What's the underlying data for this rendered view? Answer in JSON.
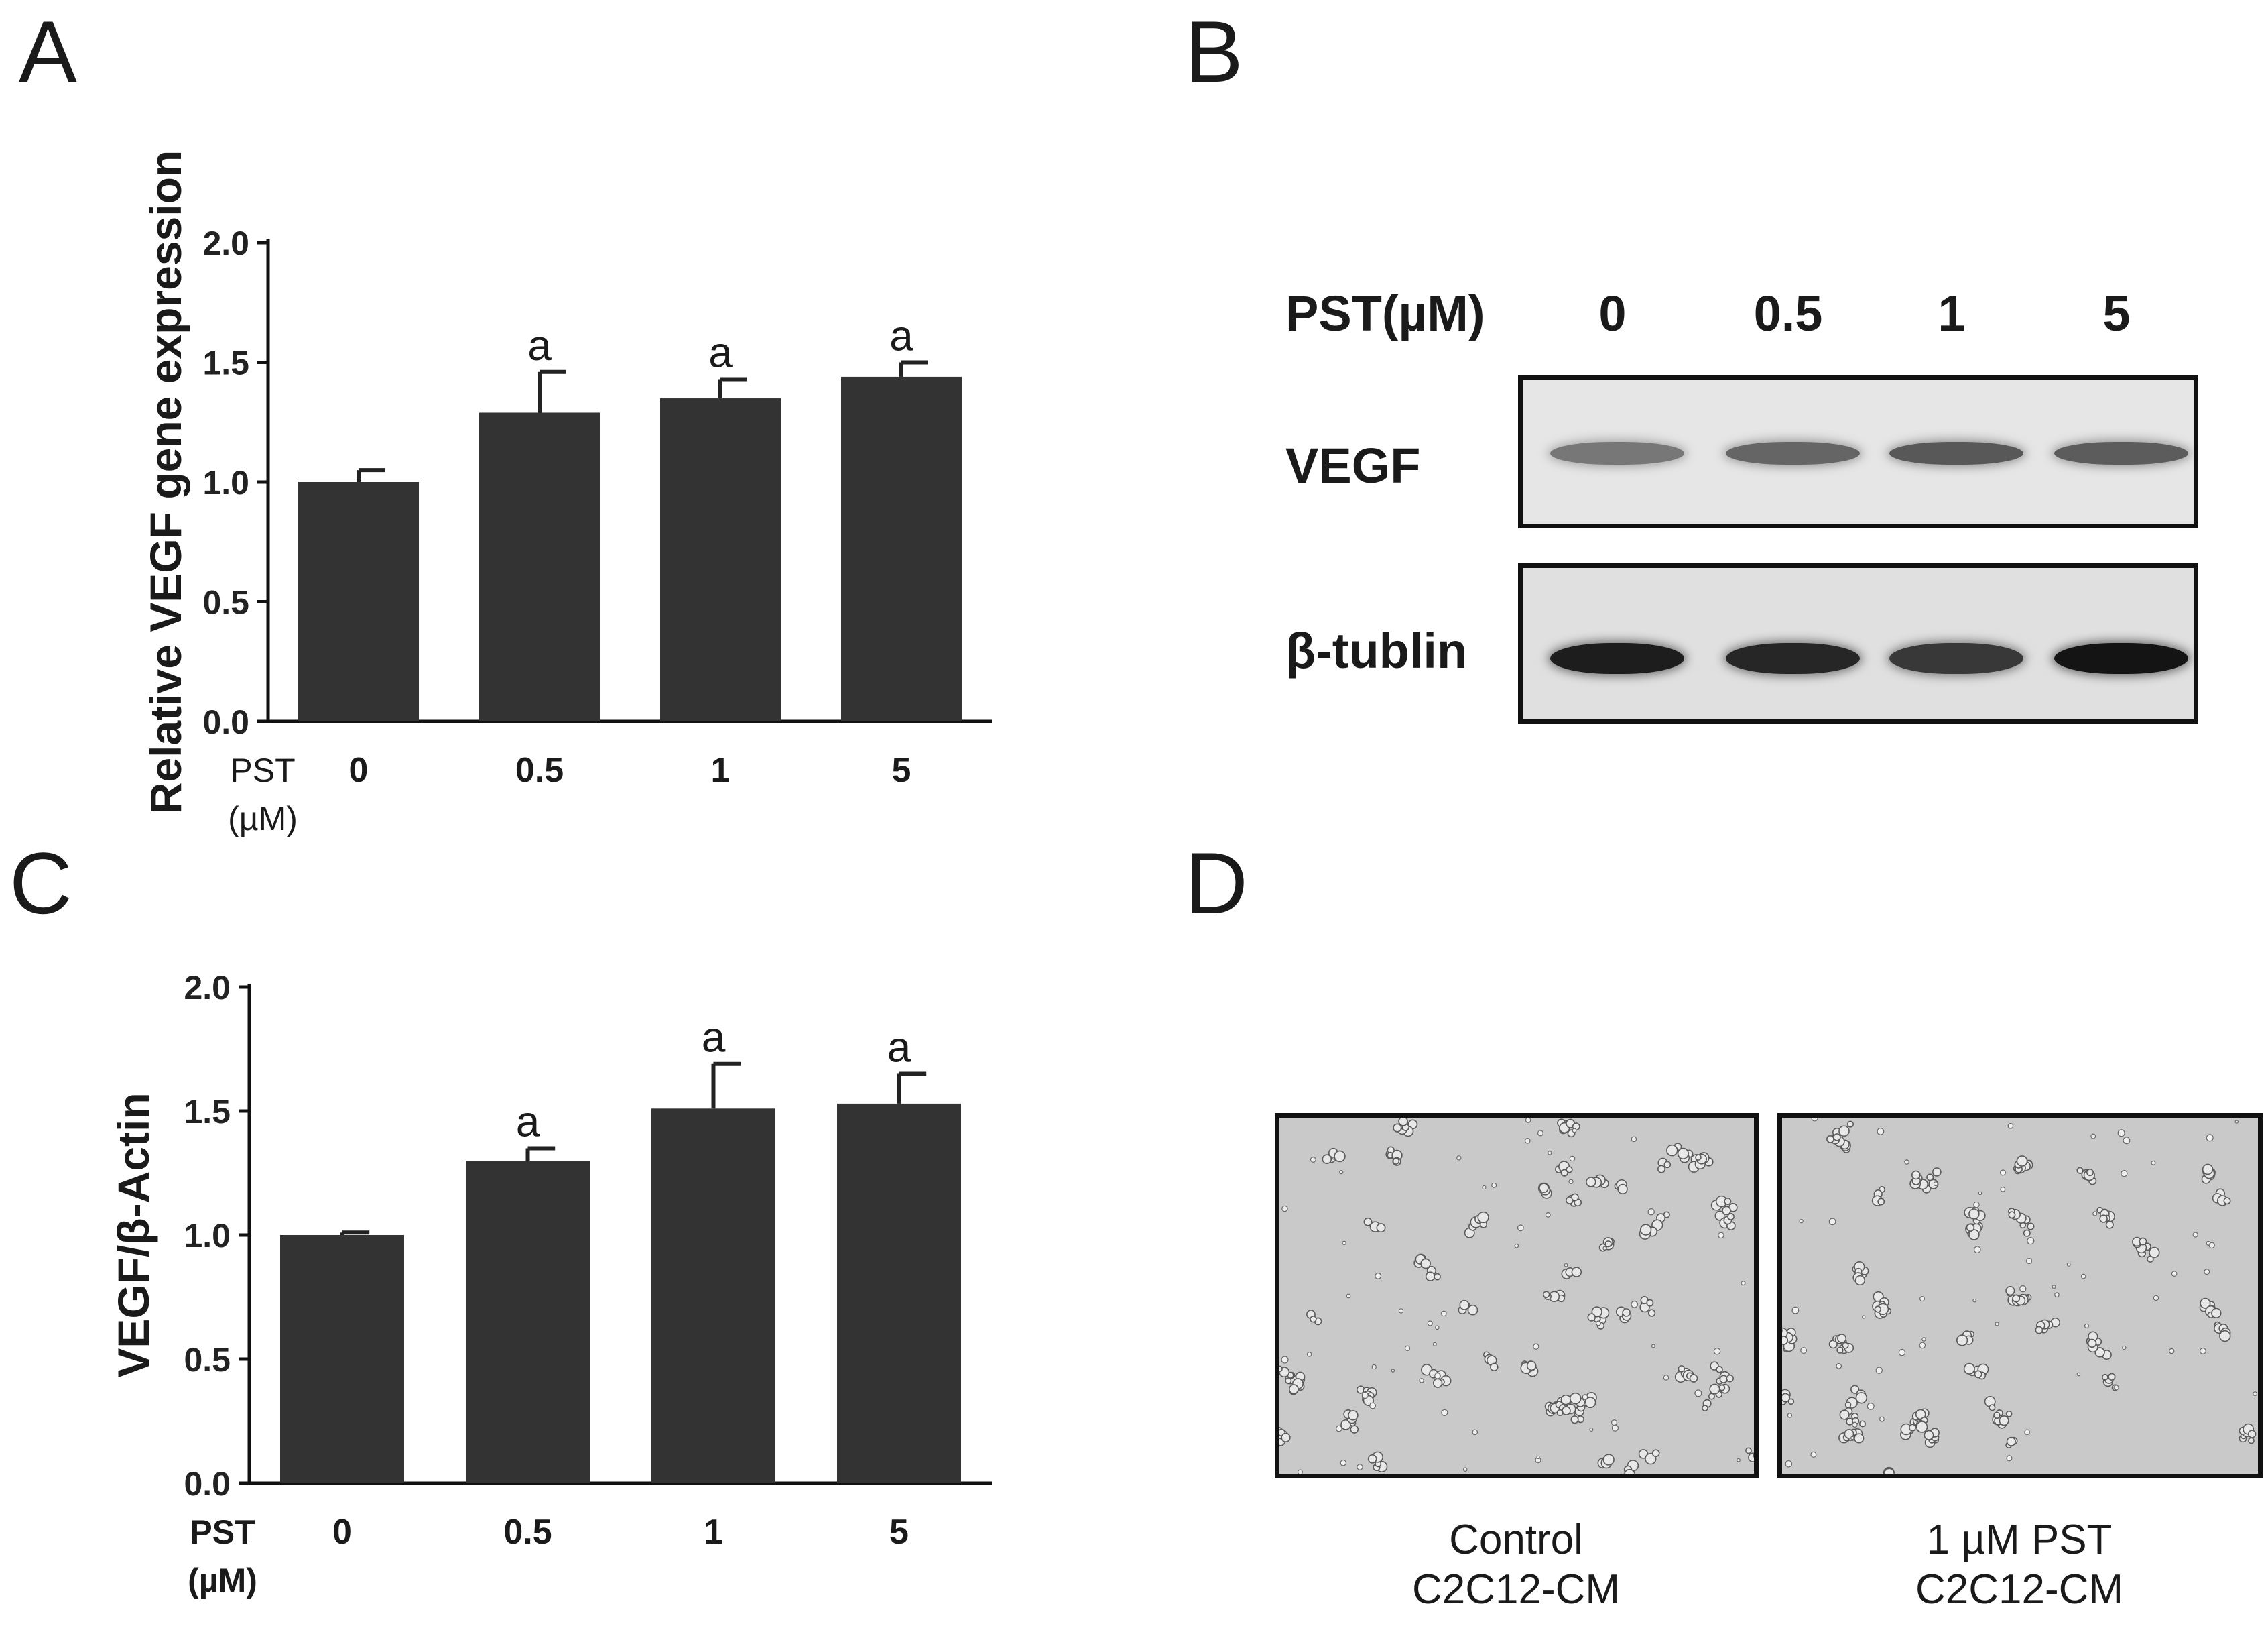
{
  "panels": {
    "a": "A",
    "b": "B",
    "c": "C",
    "d": "D"
  },
  "chart_data": [
    {
      "type": "bar",
      "panel": "A",
      "ylabel": "Relative VEGF gene expression",
      "xlabel_line1": "PST",
      "xlabel_line2": "(µM)",
      "categories": [
        "0",
        "0.5",
        "1",
        "5"
      ],
      "values": [
        1.0,
        1.29,
        1.35,
        1.44
      ],
      "errors": [
        0.05,
        0.17,
        0.08,
        0.06
      ],
      "annotations": [
        "",
        "a",
        "a",
        "a"
      ],
      "ylim": [
        0,
        2.0
      ],
      "yticks": [
        "0.0",
        "0.5",
        "1.0",
        "1.5",
        "2.0"
      ],
      "bar_color": "#333333"
    },
    {
      "type": "bar",
      "panel": "C",
      "ylabel": "VEGF/β-Actin",
      "xlabel_line1": "PST",
      "xlabel_line2": "(µM)",
      "categories": [
        "0",
        "0.5",
        "1",
        "5"
      ],
      "values": [
        1.0,
        1.3,
        1.51,
        1.53
      ],
      "errors": [
        0.01,
        0.05,
        0.18,
        0.12
      ],
      "annotations": [
        "",
        "a",
        "a",
        "a"
      ],
      "ylim": [
        0,
        2.0
      ],
      "yticks": [
        "0.0",
        "0.5",
        "1.0",
        "1.5",
        "2.0"
      ],
      "bar_color": "#333333"
    }
  ],
  "blot": {
    "header": "PST(µM)",
    "lanes": [
      "0",
      "0.5",
      "1",
      "5"
    ],
    "rows": [
      {
        "label": "VEGF",
        "intensity": [
          0.45,
          0.55,
          0.62,
          0.6
        ]
      },
      {
        "label": "β-tublin",
        "intensity": [
          0.95,
          0.9,
          0.8,
          1.0
        ]
      }
    ]
  },
  "micrographs": [
    {
      "caption_line1": "Control",
      "caption_line2": "C2C12-CM"
    },
    {
      "caption_line1": "1 µM PST",
      "caption_line2": "C2C12-CM"
    }
  ]
}
